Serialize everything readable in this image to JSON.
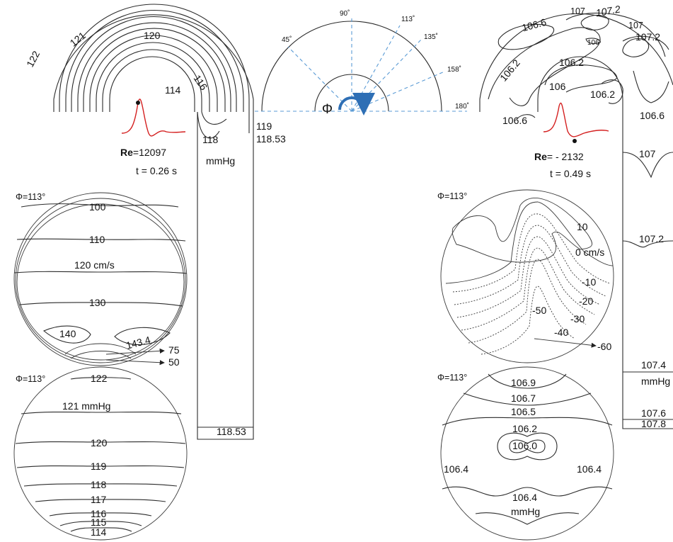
{
  "angle_diagram": {
    "phi_symbol": "Φ",
    "angles": [
      "45˚",
      "90˚",
      "113˚",
      "135˚",
      "158˚",
      "180˚"
    ]
  },
  "left_panel": {
    "re_label": "Re",
    "re_value": "=12097",
    "time": "t = 0.26 s",
    "pressure_contours": [
      "122",
      "121",
      "120",
      "116",
      "114",
      "118",
      "119",
      "118.53"
    ],
    "unit": "mmHg",
    "outlet_value": "118.53",
    "velocity_section": {
      "phi_label": "Φ=113°",
      "contours": [
        "100",
        "110",
        "120 cm/s",
        "130",
        "140",
        "143.4",
        "75",
        "50"
      ]
    },
    "pressure_section": {
      "phi_label": "Φ=113°",
      "contours": [
        "122",
        "121 mmHg",
        "120",
        "119",
        "118",
        "117",
        "116",
        "115",
        "114"
      ]
    }
  },
  "right_panel": {
    "re_label": "Re",
    "re_value": "= - 2132",
    "time": "t = 0.49 s",
    "pressure_contours": [
      "107",
      "107.2",
      "107",
      "107.2",
      "106.6",
      "106",
      "106.2",
      "106.2",
      "106",
      "106.2",
      "106.6",
      "106.6"
    ],
    "outlet_contours": [
      "107",
      "107.2",
      "107.4",
      "mmHg",
      "107.6",
      "107.8"
    ],
    "velocity_section": {
      "phi_label": "Φ=113°",
      "contours": [
        "10",
        "0 cm/s",
        "-10",
        "-20",
        "-30",
        "-50",
        "-40",
        "-60"
      ]
    },
    "pressure_section": {
      "phi_label": "Φ=113°",
      "contours": [
        "106.9",
        "106.7",
        "106.5",
        "106.2",
        "106.0",
        "106.4",
        "106.4",
        "106.4",
        "mmHg"
      ]
    }
  }
}
